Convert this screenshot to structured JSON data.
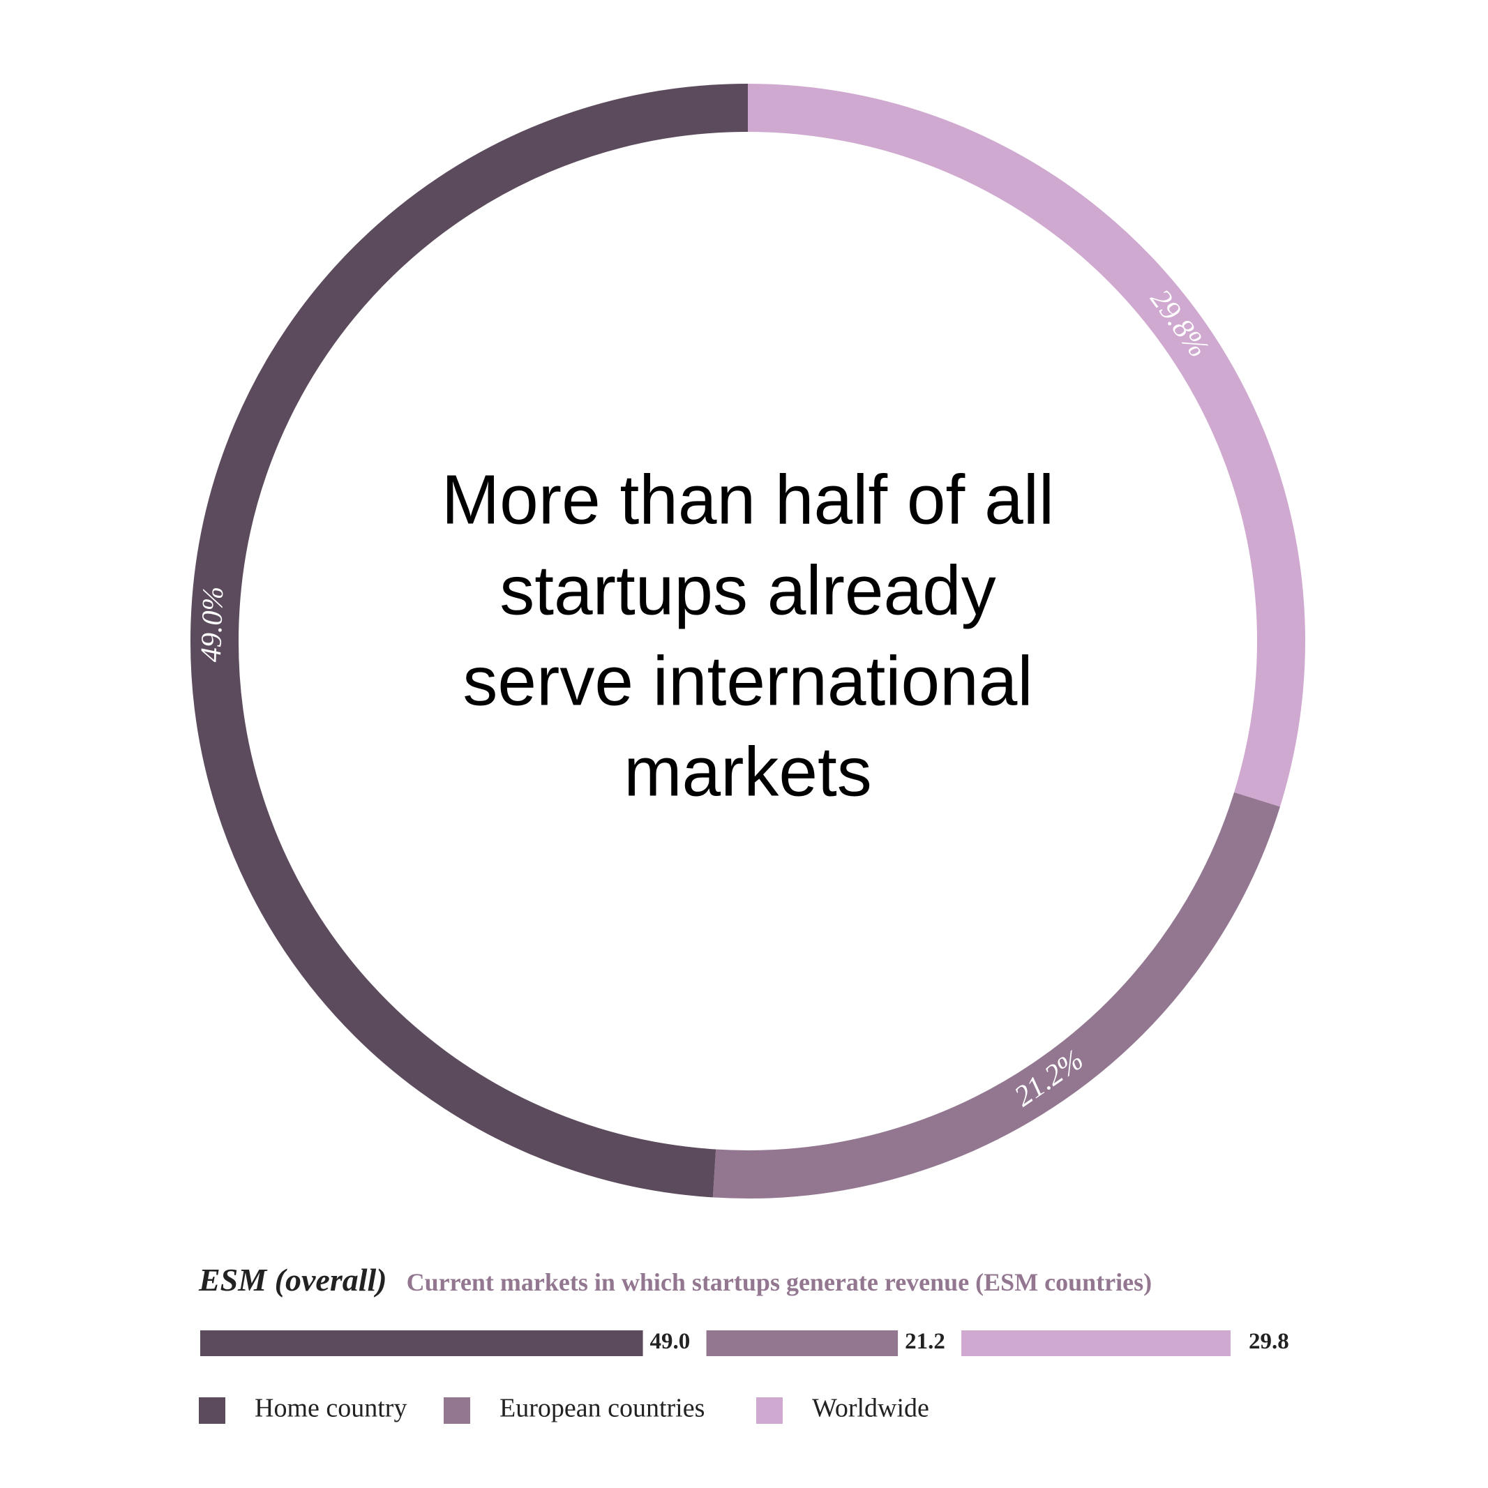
{
  "chart_data": [
    {
      "type": "donut",
      "title": [
        "More than half of all",
        "startups already",
        "serve international",
        "markets"
      ],
      "values": [
        49.0,
        21.2,
        29.8
      ],
      "value_labels": [
        "49.0%",
        "21.2%",
        "29.8%"
      ],
      "colors": [
        "#5c4b5c",
        "#937791",
        "#cfa9d0"
      ]
    },
    {
      "type": "stacked_bar",
      "title": "ESM (overall)",
      "subtitle": "Current markets in which startups generate revenue (ESM countries)",
      "series": [
        {
          "name": "Home country",
          "color": "#5c4b5c",
          "values": [
            49.0
          ],
          "value_labels": [
            "49.0"
          ]
        },
        {
          "name": "European countries",
          "color": "#937791",
          "values": [
            21.2
          ],
          "value_labels": [
            "21.2"
          ]
        },
        {
          "name": "Worldwide",
          "color": "#cfa9d0",
          "values": [
            29.8
          ],
          "value_labels": [
            "29.8"
          ]
        }
      ]
    }
  ]
}
